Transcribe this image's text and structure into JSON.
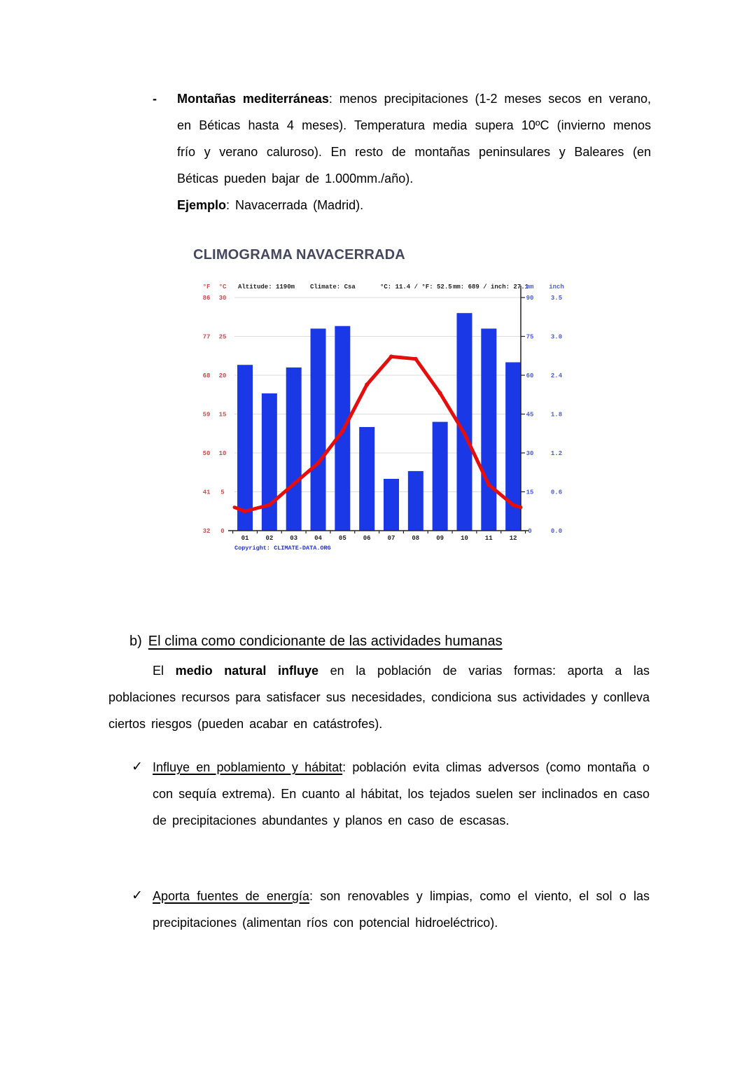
{
  "page": {
    "bullet_item": {
      "marker": "-",
      "bold_lead": "Montañas mediterráneas",
      "text_after_lead": ": menos precipitaciones (1-2 meses secos en verano, en Béticas hasta 4 meses). Temperatura media supera 10ºC (invierno menos frío y verano caluroso). En resto de montañas peninsulares y Baleares (en Béticas pueden bajar de 1.000mm./año).",
      "bold_example": "Ejemplo",
      "text_example": ": Navacerrada (Madrid)."
    },
    "section_b": {
      "prefix": "b)",
      "heading": "El clima como condicionante de las actividades humanas",
      "p1": "El ",
      "p2_bold": "medio natural influye",
      "p3": " en la población de varias formas: aporta a las poblaciones recursos para satisfacer sus necesidades, condiciona sus actividades y conlleva ciertos riesgos (pueden acabar en catástrofes)."
    },
    "check_items": [
      {
        "marker": "✓",
        "underlined": "Influye en poblamiento y hábitat",
        "text": ": población evita climas adversos (como montaña o con sequía extrema). En cuanto al hábitat, los tejados suelen ser inclinados en caso de precipitaciones abundantes y planos en caso de escasas."
      },
      {
        "marker": "✓",
        "underlined": "Aporta fuentes de energía",
        "text": ": son renovables y limpias, como el viento, el sol o las precipitaciones (alimentan ríos con potencial hidroeléctrico)."
      }
    ]
  },
  "chart_data": {
    "type": "bar",
    "subtype": "climograph: precipitation bars + temperature line",
    "title": "CLIMOGRAMA NAVACERRADA",
    "categories": [
      "01",
      "02",
      "03",
      "04",
      "05",
      "06",
      "07",
      "08",
      "09",
      "10",
      "11",
      "12"
    ],
    "series": [
      {
        "name": "Precipitation (mm)",
        "type": "bar",
        "values": [
          64,
          53,
          63,
          78,
          79,
          40,
          20,
          23,
          42,
          84,
          78,
          65
        ]
      },
      {
        "name": "Temperature (°C)",
        "type": "line",
        "values": [
          2.5,
          3.3,
          6.0,
          8.7,
          12.8,
          18.8,
          22.4,
          22.1,
          17.7,
          12.5,
          5.9,
          3.3
        ]
      }
    ],
    "edge_temps": [
      3.0,
      3.0
    ],
    "header": {
      "altitude": "Altitude: 1190m",
      "climate": "Climate: Csa",
      "temperature": "°C: 11.4 / °F: 52.5",
      "precipitation": "mm: 689 / inch: 27.1"
    },
    "left_axis": {
      "unit_f": "°F",
      "unit_c": "°C",
      "ticks_f": [
        "86",
        "77",
        "68",
        "59",
        "50",
        "41",
        "32"
      ],
      "ticks_c": [
        "30",
        "25",
        "20",
        "15",
        "10",
        "5",
        "0"
      ],
      "range_c": [
        0,
        30
      ]
    },
    "right_axis": {
      "unit_mm": "mm",
      "unit_inch": "inch",
      "ticks_mm": [
        "90",
        "75",
        "60",
        "45",
        "30",
        "15",
        "0"
      ],
      "ticks_inch": [
        "3.5",
        "3.0",
        "2.4",
        "1.8",
        "1.2",
        "0.6",
        "0.0"
      ],
      "range_mm": [
        0,
        90
      ]
    },
    "xlabel": "",
    "ylabel": "",
    "grid": true,
    "legend": "none",
    "copyright": "Copyright: CLIMATE-DATA.ORG",
    "colors": {
      "bar": "#1b38e6",
      "line": "#e60d0d",
      "grid": "#dcdcdc",
      "axis": "#222222",
      "left_text": "#cf4d4d",
      "right_text": "#4d5ed1",
      "header_text": "#222222",
      "month_text": "#222222",
      "copyright": "#2334c4",
      "title": "#45475f"
    }
  }
}
